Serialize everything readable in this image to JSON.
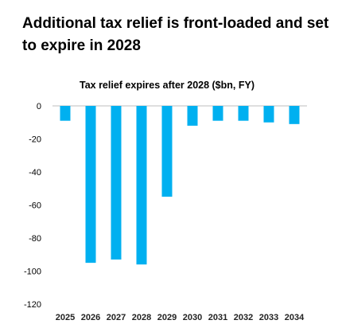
{
  "headline": "Additional tax relief is front-loaded and set to expire in 2028",
  "chart_data": {
    "type": "bar",
    "title": "Tax relief expires after 2028 ($bn, FY)",
    "xlabel": "",
    "ylabel": "",
    "categories": [
      "2025",
      "2026",
      "2027",
      "2028",
      "2029",
      "2030",
      "2031",
      "2032",
      "2033",
      "2034"
    ],
    "values": [
      -9,
      -95,
      -93,
      -96,
      -55,
      -12,
      -9,
      -9,
      -10,
      -11
    ],
    "ylim": [
      -120,
      0
    ],
    "yticks": [
      0,
      -20,
      -40,
      -60,
      -80,
      -100,
      -120
    ],
    "bar_color": "#00b0f0",
    "grid": false,
    "legend": "none"
  }
}
